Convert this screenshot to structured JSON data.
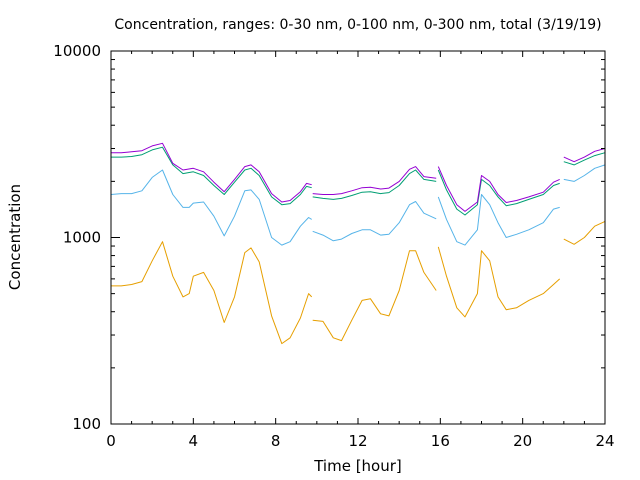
{
  "chart_data": {
    "type": "line",
    "title": "Concentration, ranges: 0-30 nm, 0-100 nm, 0-300 nm, total (3/19/19)",
    "xlabel": "Time [hour]",
    "ylabel": "Concentration",
    "xlim": [
      0,
      24
    ],
    "ylim": [
      100,
      10000
    ],
    "yscale": "log",
    "grid": false,
    "legend": "none",
    "x_ticks": [
      {
        "value": 0,
        "label": "0"
      },
      {
        "value": 4,
        "label": "4"
      },
      {
        "value": 8,
        "label": "8"
      },
      {
        "value": 12,
        "label": "12"
      },
      {
        "value": 16,
        "label": "16"
      },
      {
        "value": 20,
        "label": "20"
      },
      {
        "value": 24,
        "label": "24"
      }
    ],
    "y_ticks": [
      {
        "value": 100,
        "label": "100"
      },
      {
        "value": 1000,
        "label": "1000"
      },
      {
        "value": 10000,
        "label": "10000"
      }
    ],
    "series": [
      {
        "color": "#e69f00",
        "segments": [
          [
            [
              0,
              550
            ],
            [
              0.5,
              550
            ],
            [
              1,
              560
            ],
            [
              1.5,
              580
            ],
            [
              2,
              750
            ],
            [
              2.5,
              950
            ],
            [
              3,
              620
            ],
            [
              3.5,
              480
            ],
            [
              3.8,
              500
            ],
            [
              4,
              620
            ],
            [
              4.5,
              650
            ],
            [
              5,
              520
            ],
            [
              5.5,
              350
            ],
            [
              6,
              480
            ],
            [
              6.5,
              830
            ],
            [
              6.8,
              880
            ],
            [
              7.2,
              740
            ],
            [
              7.8,
              380
            ],
            [
              8.3,
              270
            ],
            [
              8.7,
              290
            ],
            [
              9.2,
              370
            ],
            [
              9.6,
              500
            ],
            [
              9.75,
              480
            ]
          ],
          [
            [
              9.8,
              360
            ],
            [
              10.3,
              355
            ],
            [
              10.8,
              290
            ],
            [
              11.2,
              280
            ],
            [
              11.7,
              360
            ],
            [
              12.2,
              460
            ],
            [
              12.6,
              470
            ],
            [
              13.1,
              390
            ],
            [
              13.5,
              380
            ],
            [
              14,
              520
            ],
            [
              14.5,
              850
            ],
            [
              14.8,
              850
            ],
            [
              15.2,
              650
            ],
            [
              15.8,
              520
            ]
          ],
          [
            [
              15.9,
              890
            ],
            [
              16.3,
              620
            ],
            [
              16.8,
              420
            ],
            [
              17.2,
              375
            ],
            [
              17.8,
              500
            ],
            [
              18,
              850
            ],
            [
              18.4,
              750
            ],
            [
              18.8,
              480
            ],
            [
              19.2,
              410
            ],
            [
              19.7,
              420
            ],
            [
              20.3,
              460
            ],
            [
              21,
              500
            ],
            [
              21.5,
              560
            ],
            [
              21.8,
              600
            ]
          ],
          [
            [
              22,
              980
            ],
            [
              22.5,
              920
            ],
            [
              23,
              1000
            ],
            [
              23.5,
              1150
            ],
            [
              24,
              1220
            ]
          ]
        ]
      },
      {
        "color": "#56b4e9",
        "segments": [
          [
            [
              0,
              1700
            ],
            [
              0.5,
              1720
            ],
            [
              1,
              1720
            ],
            [
              1.5,
              1780
            ],
            [
              2,
              2100
            ],
            [
              2.5,
              2300
            ],
            [
              3,
              1700
            ],
            [
              3.5,
              1450
            ],
            [
              3.8,
              1450
            ],
            [
              4,
              1530
            ],
            [
              4.5,
              1550
            ],
            [
              5,
              1300
            ],
            [
              5.5,
              1020
            ],
            [
              6,
              1300
            ],
            [
              6.5,
              1780
            ],
            [
              6.8,
              1800
            ],
            [
              7.2,
              1600
            ],
            [
              7.8,
              1000
            ],
            [
              8.3,
              910
            ],
            [
              8.7,
              950
            ],
            [
              9.2,
              1150
            ],
            [
              9.6,
              1280
            ],
            [
              9.75,
              1250
            ]
          ],
          [
            [
              9.8,
              1080
            ],
            [
              10.3,
              1030
            ],
            [
              10.8,
              960
            ],
            [
              11.2,
              980
            ],
            [
              11.7,
              1050
            ],
            [
              12.2,
              1100
            ],
            [
              12.6,
              1100
            ],
            [
              13.1,
              1030
            ],
            [
              13.5,
              1040
            ],
            [
              14,
              1200
            ],
            [
              14.5,
              1500
            ],
            [
              14.8,
              1560
            ],
            [
              15.2,
              1350
            ],
            [
              15.8,
              1260
            ]
          ],
          [
            [
              15.9,
              1650
            ],
            [
              16.3,
              1250
            ],
            [
              16.8,
              950
            ],
            [
              17.2,
              910
            ],
            [
              17.8,
              1100
            ],
            [
              18,
              1700
            ],
            [
              18.4,
              1500
            ],
            [
              18.8,
              1200
            ],
            [
              19.2,
              1000
            ],
            [
              19.7,
              1040
            ],
            [
              20.3,
              1100
            ],
            [
              21,
              1200
            ],
            [
              21.5,
              1420
            ],
            [
              21.8,
              1450
            ]
          ],
          [
            [
              22,
              2050
            ],
            [
              22.5,
              2000
            ],
            [
              23,
              2150
            ],
            [
              23.5,
              2350
            ],
            [
              24,
              2450
            ]
          ]
        ]
      },
      {
        "color": "#009e73",
        "segments": [
          [
            [
              0,
              2700
            ],
            [
              0.5,
              2700
            ],
            [
              1,
              2720
            ],
            [
              1.5,
              2780
            ],
            [
              2,
              2950
            ],
            [
              2.5,
              3050
            ],
            [
              3,
              2450
            ],
            [
              3.5,
              2200
            ],
            [
              4,
              2250
            ],
            [
              4.5,
              2150
            ],
            [
              5,
              1900
            ],
            [
              5.5,
              1700
            ],
            [
              6,
              1980
            ],
            [
              6.5,
              2300
            ],
            [
              6.8,
              2350
            ],
            [
              7.2,
              2150
            ],
            [
              7.8,
              1650
            ],
            [
              8.3,
              1500
            ],
            [
              8.7,
              1520
            ],
            [
              9.2,
              1700
            ],
            [
              9.5,
              1880
            ],
            [
              9.75,
              1850
            ]
          ],
          [
            [
              9.8,
              1650
            ],
            [
              10.3,
              1620
            ],
            [
              10.8,
              1600
            ],
            [
              11.2,
              1620
            ],
            [
              11.7,
              1680
            ],
            [
              12.2,
              1750
            ],
            [
              12.6,
              1760
            ],
            [
              13.1,
              1720
            ],
            [
              13.5,
              1740
            ],
            [
              14,
              1900
            ],
            [
              14.5,
              2200
            ],
            [
              14.8,
              2300
            ],
            [
              15.2,
              2050
            ],
            [
              15.8,
              2000
            ]
          ],
          [
            [
              15.9,
              2300
            ],
            [
              16.3,
              1800
            ],
            [
              16.8,
              1420
            ],
            [
              17.2,
              1320
            ],
            [
              17.8,
              1500
            ],
            [
              18,
              2050
            ],
            [
              18.4,
              1900
            ],
            [
              18.8,
              1650
            ],
            [
              19.2,
              1480
            ],
            [
              19.7,
              1520
            ],
            [
              20.3,
              1600
            ],
            [
              21,
              1700
            ],
            [
              21.5,
              1900
            ],
            [
              21.8,
              1950
            ]
          ],
          [
            [
              22,
              2550
            ],
            [
              22.5,
              2450
            ],
            [
              23,
              2600
            ],
            [
              23.5,
              2750
            ],
            [
              24,
              2850
            ]
          ]
        ]
      },
      {
        "color": "#9400d3",
        "segments": [
          [
            [
              0,
              2850
            ],
            [
              0.5,
              2850
            ],
            [
              1,
              2880
            ],
            [
              1.5,
              2920
            ],
            [
              2,
              3100
            ],
            [
              2.5,
              3200
            ],
            [
              3,
              2500
            ],
            [
              3.5,
              2300
            ],
            [
              4,
              2350
            ],
            [
              4.5,
              2250
            ],
            [
              5,
              1980
            ],
            [
              5.5,
              1760
            ],
            [
              6,
              2050
            ],
            [
              6.5,
              2400
            ],
            [
              6.8,
              2450
            ],
            [
              7.2,
              2250
            ],
            [
              7.8,
              1720
            ],
            [
              8.3,
              1550
            ],
            [
              8.7,
              1580
            ],
            [
              9.2,
              1760
            ],
            [
              9.5,
              1950
            ],
            [
              9.75,
              1920
            ]
          ],
          [
            [
              9.8,
              1720
            ],
            [
              10.3,
              1700
            ],
            [
              10.8,
              1700
            ],
            [
              11.2,
              1720
            ],
            [
              11.7,
              1780
            ],
            [
              12.2,
              1850
            ],
            [
              12.6,
              1860
            ],
            [
              13.1,
              1820
            ],
            [
              13.5,
              1840
            ],
            [
              14,
              2000
            ],
            [
              14.5,
              2320
            ],
            [
              14.8,
              2400
            ],
            [
              15.2,
              2120
            ],
            [
              15.8,
              2080
            ]
          ],
          [
            [
              15.9,
              2400
            ],
            [
              16.3,
              1900
            ],
            [
              16.8,
              1500
            ],
            [
              17.2,
              1380
            ],
            [
              17.8,
              1550
            ],
            [
              18,
              2150
            ],
            [
              18.4,
              2000
            ],
            [
              18.8,
              1700
            ],
            [
              19.2,
              1540
            ],
            [
              19.7,
              1580
            ],
            [
              20.3,
              1650
            ],
            [
              21,
              1750
            ],
            [
              21.5,
              1980
            ],
            [
              21.8,
              2050
            ]
          ],
          [
            [
              22,
              2700
            ],
            [
              22.5,
              2550
            ],
            [
              23,
              2700
            ],
            [
              23.5,
              2900
            ],
            [
              24,
              3000
            ]
          ]
        ]
      }
    ]
  }
}
